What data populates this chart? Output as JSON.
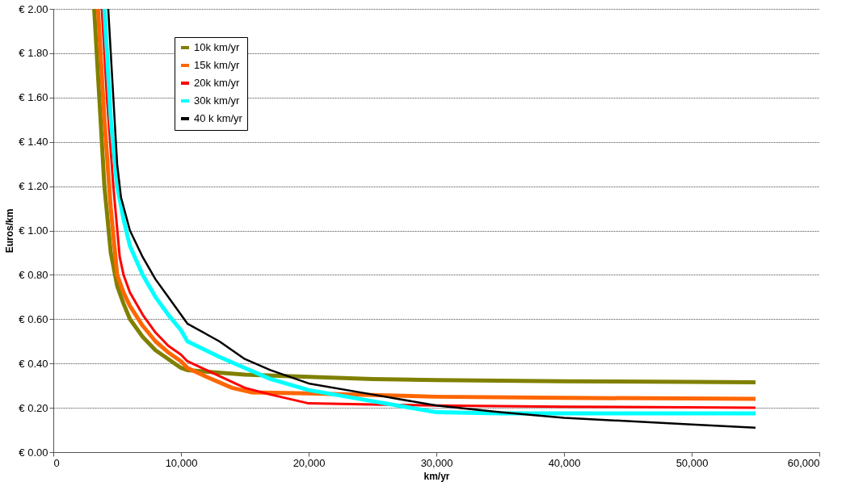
{
  "chart_data": {
    "type": "line",
    "xlabel": "km/yr",
    "ylabel": "Euros/km",
    "xlim": [
      0,
      60000
    ],
    "ylim": [
      0,
      2.0
    ],
    "xticks": [
      0,
      {
        "value": 10000,
        "label": "10,000"
      },
      {
        "value": 20000,
        "label": "20,000"
      },
      {
        "value": 30000,
        "label": "30,000"
      },
      {
        "value": 40000,
        "label": "40,000"
      },
      {
        "value": 50000,
        "label": "50,000"
      },
      {
        "value": 60000,
        "label": "60,000"
      }
    ],
    "yticks": [
      {
        "value": 0,
        "label": "€ 0.00"
      },
      {
        "value": 0.2,
        "label": "€ 0.20"
      },
      {
        "value": 0.4,
        "label": "€ 0.40"
      },
      {
        "value": 0.6,
        "label": "€ 0.60"
      },
      {
        "value": 0.8,
        "label": "€ 0.80"
      },
      {
        "value": 1.0,
        "label": "€ 1.00"
      },
      {
        "value": 1.2,
        "label": "€ 1.20"
      },
      {
        "value": 1.4,
        "label": "€ 1.40"
      },
      {
        "value": 1.6,
        "label": "€ 1.60"
      },
      {
        "value": 1.8,
        "label": "€ 1.80"
      },
      {
        "value": 2.0,
        "label": "€ 2.00"
      }
    ],
    "grid": "y",
    "legend": "top left",
    "marker": "none",
    "line_style": "solid",
    "series": [
      {
        "name": "10k km/yr",
        "color": "#808000",
        "x": [
          3200,
          3600,
          4000,
          4500,
          5000,
          5500,
          6000,
          7000,
          8000,
          9000,
          10000,
          10500,
          15000,
          20000,
          25000,
          30000,
          40000,
          50000,
          55000
        ],
        "values": [
          2.0,
          1.6,
          1.2,
          0.9,
          0.75,
          0.67,
          0.6,
          0.52,
          0.46,
          0.42,
          0.38,
          0.37,
          0.35,
          0.34,
          0.33,
          0.325,
          0.32,
          0.317,
          0.315
        ]
      },
      {
        "name": "15k km/yr",
        "color": "#ff6600",
        "x": [
          3500,
          4000,
          4500,
          5000,
          5500,
          6000,
          7000,
          8000,
          9000,
          10000,
          10500,
          12000,
          14000,
          15500,
          20000,
          30000,
          40000,
          55000
        ],
        "values": [
          2.0,
          1.5,
          1.1,
          0.8,
          0.72,
          0.66,
          0.57,
          0.5,
          0.45,
          0.41,
          0.38,
          0.34,
          0.29,
          0.27,
          0.265,
          0.25,
          0.245,
          0.24
        ]
      },
      {
        "name": "20k km/yr",
        "color": "#ff0000",
        "x": [
          3800,
          4200,
          4700,
          5200,
          5500,
          6000,
          7000,
          8000,
          9000,
          10000,
          10500,
          12000,
          15000,
          17000,
          20000,
          25000,
          30000,
          40000,
          55000
        ],
        "values": [
          2.0,
          1.6,
          1.2,
          0.88,
          0.8,
          0.72,
          0.62,
          0.54,
          0.48,
          0.44,
          0.41,
          0.37,
          0.29,
          0.26,
          0.22,
          0.215,
          0.21,
          0.205,
          0.2
        ]
      },
      {
        "name": "30k km/yr",
        "color": "#00ffff",
        "x": [
          4000,
          4500,
          5000,
          5500,
          6000,
          7000,
          8000,
          9000,
          10000,
          10500,
          13000,
          15000,
          17000,
          20000,
          25000,
          30000,
          35000,
          45000,
          55000
        ],
        "values": [
          2.0,
          1.5,
          1.2,
          1.05,
          0.93,
          0.8,
          0.7,
          0.62,
          0.55,
          0.5,
          0.43,
          0.38,
          0.33,
          0.28,
          0.23,
          0.18,
          0.175,
          0.175,
          0.175
        ]
      },
      {
        "name": "40 k km/yr",
        "color": "#000000",
        "x": [
          4300,
          4700,
          5000,
          5300,
          6000,
          7000,
          8000,
          9000,
          10000,
          10500,
          13000,
          15000,
          17000,
          20000,
          25000,
          30000,
          35000,
          40000,
          50000,
          55000
        ],
        "values": [
          2.0,
          1.6,
          1.3,
          1.15,
          1.0,
          0.88,
          0.78,
          0.7,
          0.62,
          0.58,
          0.5,
          0.42,
          0.37,
          0.31,
          0.26,
          0.21,
          0.18,
          0.155,
          0.125,
          0.11
        ]
      }
    ]
  }
}
